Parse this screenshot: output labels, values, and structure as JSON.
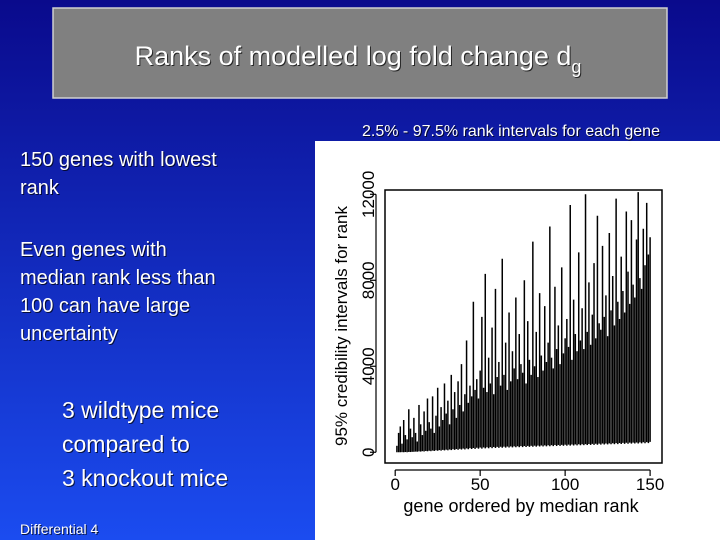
{
  "slide": {
    "title": "Ranks of modelled log fold change d",
    "title_subscript": "g",
    "bullets": [
      [
        "150 genes with lowest",
        "rank"
      ],
      [
        "Even genes with",
        "median rank less than",
        "100 can have large",
        "uncertainty"
      ]
    ],
    "note": [
      "3 wildtype mice",
      "compared to",
      "3 knockout mice"
    ],
    "footer": "Differential 4"
  },
  "chart_data": {
    "type": "interval",
    "title": "2.5% - 97.5%  rank intervals for each gene",
    "xlabel": "gene ordered by median rank",
    "ylabel": "95% credibility intervals for rank",
    "color": "#000000",
    "xlim": [
      -6,
      157
    ],
    "ylim": [
      -500,
      12200
    ],
    "xticks": [
      0,
      50,
      100,
      150
    ],
    "yticks": [
      0,
      4000,
      8000,
      12000
    ],
    "x": [
      1,
      2,
      3,
      4,
      5,
      6,
      7,
      8,
      9,
      10,
      11,
      12,
      13,
      14,
      15,
      16,
      17,
      18,
      19,
      20,
      21,
      22,
      23,
      24,
      25,
      26,
      27,
      28,
      29,
      30,
      31,
      32,
      33,
      34,
      35,
      36,
      37,
      38,
      39,
      40,
      41,
      42,
      43,
      44,
      45,
      46,
      47,
      48,
      49,
      50,
      51,
      52,
      53,
      54,
      55,
      56,
      57,
      58,
      59,
      60,
      61,
      62,
      63,
      64,
      65,
      66,
      67,
      68,
      69,
      70,
      71,
      72,
      73,
      74,
      75,
      76,
      77,
      78,
      79,
      80,
      81,
      82,
      83,
      84,
      85,
      86,
      87,
      88,
      89,
      90,
      91,
      92,
      93,
      94,
      95,
      96,
      97,
      98,
      99,
      100,
      101,
      102,
      103,
      104,
      105,
      106,
      107,
      108,
      109,
      110,
      111,
      112,
      113,
      114,
      115,
      116,
      117,
      118,
      119,
      120,
      121,
      122,
      123,
      124,
      125,
      126,
      127,
      128,
      129,
      130,
      131,
      132,
      133,
      134,
      135,
      136,
      137,
      138,
      139,
      140,
      141,
      142,
      143,
      144,
      145,
      146,
      147,
      148,
      149,
      150
    ],
    "lower": [
      0,
      0,
      0,
      5,
      0,
      10,
      0,
      15,
      10,
      20,
      20,
      30,
      25,
      40,
      30,
      50,
      35,
      60,
      45,
      70,
      50,
      80,
      60,
      90,
      70,
      100,
      75,
      110,
      85,
      120,
      90,
      130,
      100,
      140,
      110,
      150,
      115,
      160,
      125,
      170,
      130,
      180,
      140,
      190,
      150,
      200,
      155,
      210,
      165,
      220,
      170,
      225,
      180,
      230,
      185,
      240,
      190,
      245,
      200,
      250,
      205,
      255,
      210,
      260,
      215,
      265,
      220,
      270,
      225,
      275,
      230,
      280,
      235,
      285,
      240,
      290,
      245,
      295,
      250,
      300,
      255,
      305,
      260,
      310,
      265,
      315,
      270,
      320,
      275,
      325,
      280,
      330,
      285,
      335,
      290,
      340,
      295,
      345,
      300,
      350,
      305,
      355,
      310,
      360,
      315,
      365,
      320,
      370,
      325,
      375,
      330,
      380,
      335,
      385,
      340,
      390,
      345,
      395,
      350,
      400,
      355,
      405,
      360,
      410,
      365,
      415,
      370,
      420,
      375,
      425,
      380,
      430,
      385,
      435,
      390,
      440,
      395,
      445,
      400,
      450,
      405,
      455,
      410,
      460,
      415,
      465,
      420,
      470,
      425,
      480
    ],
    "upper": [
      300,
      900,
      1200,
      400,
      1500,
      800,
      600,
      2000,
      1100,
      700,
      1600,
      900,
      500,
      2200,
      1300,
      800,
      1900,
      1000,
      2500,
      1400,
      1100,
      2600,
      900,
      1700,
      3000,
      1200,
      2100,
      1500,
      3200,
      1800,
      2400,
      1300,
      3600,
      2000,
      2800,
      1600,
      3300,
      2200,
      4100,
      1900,
      2700,
      5200,
      2300,
      3100,
      2600,
      7000,
      2900,
      3400,
      2500,
      3800,
      6300,
      3000,
      8300,
      2800,
      4400,
      3200,
      5800,
      2700,
      7600,
      3500,
      4200,
      3100,
      9000,
      3600,
      5100,
      2900,
      6500,
      3300,
      4700,
      3900,
      7200,
      3400,
      5500,
      4100,
      3700,
      8000,
      3200,
      6100,
      4300,
      3600,
      9800,
      4000,
      5600,
      3500,
      7400,
      4500,
      3800,
      6800,
      4200,
      5100,
      10500,
      4400,
      3900,
      7700,
      4800,
      5900,
      4100,
      8600,
      4600,
      5300,
      6200,
      4900,
      11500,
      4300,
      7100,
      5500,
      4700,
      9300,
      5200,
      6700,
      4800,
      12000,
      5600,
      7900,
      5000,
      6400,
      8800,
      5300,
      11000,
      6000,
      5700,
      9600,
      6300,
      7300,
      5400,
      10200,
      6600,
      8200,
      5900,
      11800,
      7000,
      6200,
      9100,
      7500,
      6500,
      11200,
      8400,
      6900,
      10800,
      7800,
      7200,
      9900,
      12100,
      8100,
      7600,
      10400,
      8700,
      11600,
      9200,
      10000
    ]
  }
}
